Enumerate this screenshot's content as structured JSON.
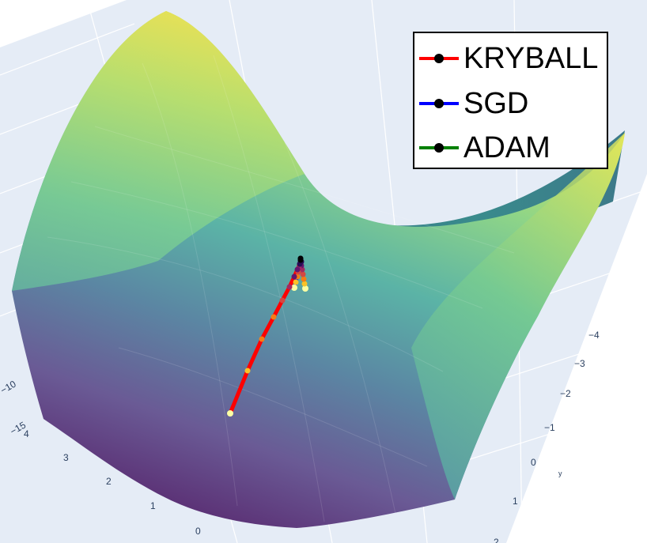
{
  "chart_data": {
    "type": "surface",
    "surface": "saddle",
    "colorscale": "viridis",
    "axes": {
      "x": {
        "ticks": [
          "4",
          "3",
          "2",
          "1",
          "0"
        ]
      },
      "y": {
        "title": "y",
        "ticks": [
          "−4",
          "−3",
          "−2",
          "−1",
          "0",
          "1",
          "2"
        ]
      },
      "z": {
        "ticks": [
          "−10",
          "−15"
        ]
      }
    },
    "legend": {
      "placement": "top-right",
      "items": [
        {
          "label": "KRYBALL",
          "color": "#ff0000",
          "marker_color": "#000000"
        },
        {
          "label": "SGD",
          "color": "#0000ff",
          "marker_color": "#000000"
        },
        {
          "label": "ADAM",
          "color": "#008000",
          "marker_color": "#000000"
        }
      ]
    },
    "series": [
      {
        "name": "KRYBALL",
        "color": "#ff0000",
        "marker_colorscale": "inferno"
      },
      {
        "name": "SGD",
        "color": "#0000ff",
        "marker_colorscale": "inferno"
      },
      {
        "name": "ADAM",
        "color": "#008000",
        "marker_colorscale": "inferno"
      }
    ]
  }
}
